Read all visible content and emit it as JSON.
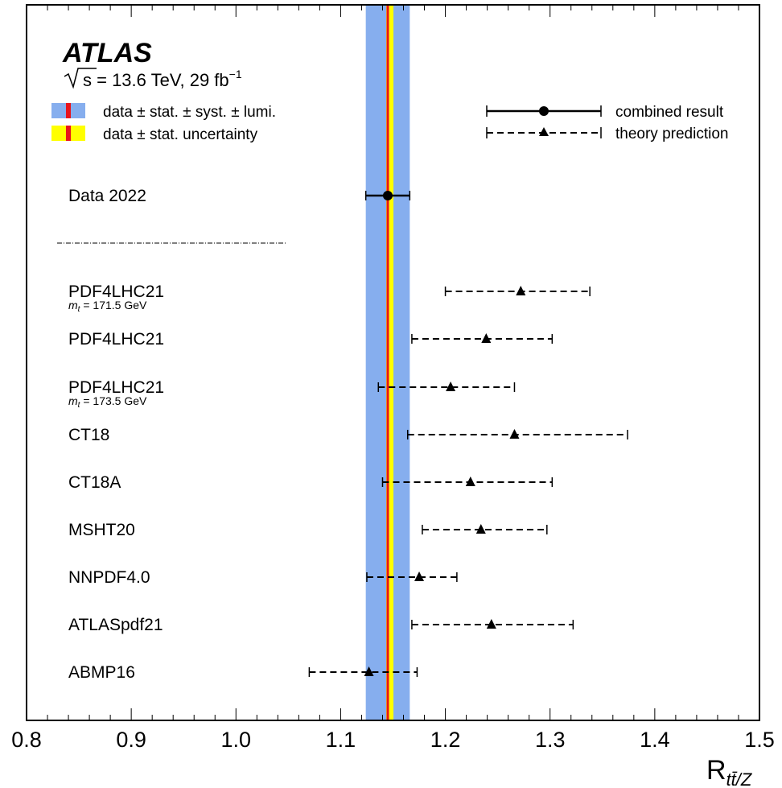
{
  "chart_data": {
    "type": "scatter",
    "experiment": "ATLAS",
    "energy_label": "s = 13.6 TeV, 29 fb",
    "energy_label_exponent": "−1",
    "xlabel": "R",
    "xlabel_subscript": "tt̄/Z",
    "xlim": [
      0.8,
      1.5
    ],
    "x_ticks": [
      "0.8",
      "0.9",
      "1.0",
      "1.1",
      "1.2",
      "1.3",
      "1.4",
      "1.5"
    ],
    "x_tick_values": [
      0.8,
      0.9,
      1.0,
      1.1,
      1.2,
      1.3,
      1.4,
      1.5
    ],
    "band": {
      "central": 1.145,
      "total_low": 1.124,
      "total_high": 1.166,
      "stat_low": 1.1435,
      "stat_high": 1.1465,
      "colors": {
        "total": "#86aeee",
        "stat": "#ffff00",
        "central": "#e8141b"
      }
    },
    "legend": {
      "band_total": "data ± stat. ± syst. ± lumi.",
      "band_stat": "data ± stat. uncertainty",
      "combined": "combined result",
      "theory": "theory prediction"
    },
    "data_point": {
      "label": "Data 2022",
      "value": 1.145,
      "low": 1.124,
      "high": 1.166
    },
    "predictions": [
      {
        "label": "PDF4LHC21",
        "sublabel": "m",
        "sublabel_sub": "t",
        "sublabel_rest": " = 171.5 GeV",
        "value": 1.272,
        "low": 1.2,
        "high": 1.338
      },
      {
        "label": "PDF4LHC21",
        "sublabel": "",
        "sublabel_sub": "",
        "sublabel_rest": "",
        "value": 1.239,
        "low": 1.168,
        "high": 1.302
      },
      {
        "label": "PDF4LHC21",
        "sublabel": "m",
        "sublabel_sub": "t",
        "sublabel_rest": " = 173.5 GeV",
        "value": 1.205,
        "low": 1.136,
        "high": 1.266
      },
      {
        "label": "CT18",
        "sublabel": "",
        "sublabel_sub": "",
        "sublabel_rest": "",
        "value": 1.266,
        "low": 1.164,
        "high": 1.374
      },
      {
        "label": "CT18A",
        "sublabel": "",
        "sublabel_sub": "",
        "sublabel_rest": "",
        "value": 1.224,
        "low": 1.14,
        "high": 1.302
      },
      {
        "label": "MSHT20",
        "sublabel": "",
        "sublabel_sub": "",
        "sublabel_rest": "",
        "value": 1.234,
        "low": 1.178,
        "high": 1.297
      },
      {
        "label": "NNPDF4.0",
        "sublabel": "",
        "sublabel_sub": "",
        "sublabel_rest": "",
        "value": 1.175,
        "low": 1.125,
        "high": 1.211
      },
      {
        "label": "ATLASpdf21",
        "sublabel": "",
        "sublabel_sub": "",
        "sublabel_rest": "",
        "value": 1.244,
        "low": 1.168,
        "high": 1.322
      },
      {
        "label": "ABMP16",
        "sublabel": "",
        "sublabel_sub": "",
        "sublabel_rest": "",
        "value": 1.127,
        "low": 1.07,
        "high": 1.173
      }
    ]
  }
}
